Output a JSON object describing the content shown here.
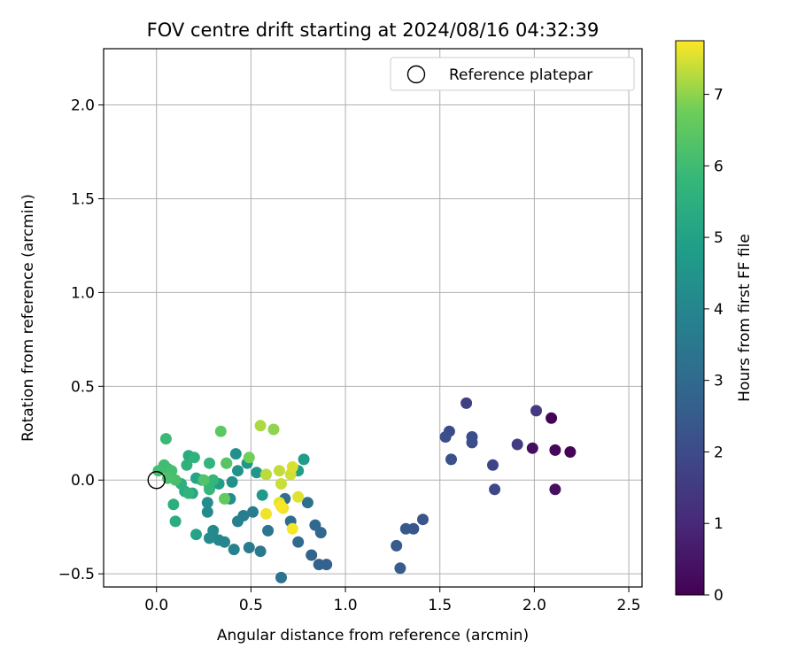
{
  "chart_data": {
    "type": "scatter",
    "title": "FOV centre drift starting at 2024/08/16 04:32:39",
    "xlabel": "Angular distance from reference (arcmin)",
    "ylabel": "Rotation from reference (arcmin)",
    "xlim": [
      -0.28,
      2.57
    ],
    "ylim": [
      -0.57,
      2.3
    ],
    "xticks": [
      0.0,
      0.5,
      1.0,
      1.5,
      2.0,
      2.5
    ],
    "xtick_labels": [
      "0.0",
      "0.5",
      "1.0",
      "1.5",
      "2.0",
      "2.5"
    ],
    "yticks": [
      -0.5,
      0.0,
      0.5,
      1.0,
      1.5,
      2.0
    ],
    "ytick_labels": [
      "−0.5",
      "0.0",
      "0.5",
      "1.0",
      "1.5",
      "2.0"
    ],
    "grid": true,
    "colormap": "viridis",
    "colorbar": {
      "label": "Hours from first FF file",
      "range": [
        0,
        7.75
      ],
      "ticks": [
        0,
        1,
        2,
        3,
        4,
        5,
        6,
        7
      ],
      "tick_labels": [
        "0",
        "1",
        "2",
        "3",
        "4",
        "5",
        "6",
        "7"
      ]
    },
    "legend": {
      "position": "top-right",
      "label": "Reference platepar"
    },
    "reference_point": {
      "x": 0.0,
      "y": 0.0
    },
    "points": [
      {
        "x": 2.09,
        "y": 0.33,
        "h": 0.05
      },
      {
        "x": 2.19,
        "y": 0.15,
        "h": 0.1
      },
      {
        "x": 2.11,
        "y": 0.16,
        "h": 0.15
      },
      {
        "x": 1.99,
        "y": 0.17,
        "h": 0.3
      },
      {
        "x": 2.11,
        "y": -0.05,
        "h": 0.4
      },
      {
        "x": 2.01,
        "y": 0.37,
        "h": 1.5
      },
      {
        "x": 1.91,
        "y": 0.19,
        "h": 1.55
      },
      {
        "x": 1.64,
        "y": 0.41,
        "h": 1.7
      },
      {
        "x": 1.78,
        "y": 0.08,
        "h": 1.8
      },
      {
        "x": 1.79,
        "y": -0.05,
        "h": 1.9
      },
      {
        "x": 1.55,
        "y": 0.26,
        "h": 2.0
      },
      {
        "x": 1.67,
        "y": 0.23,
        "h": 2.05
      },
      {
        "x": 1.67,
        "y": 0.2,
        "h": 2.1
      },
      {
        "x": 1.53,
        "y": 0.23,
        "h": 2.15
      },
      {
        "x": 1.56,
        "y": 0.11,
        "h": 2.2
      },
      {
        "x": 1.41,
        "y": -0.21,
        "h": 2.3
      },
      {
        "x": 1.36,
        "y": -0.26,
        "h": 2.35
      },
      {
        "x": 1.32,
        "y": -0.26,
        "h": 2.4
      },
      {
        "x": 1.27,
        "y": -0.35,
        "h": 2.5
      },
      {
        "x": 1.29,
        "y": -0.47,
        "h": 2.55
      },
      {
        "x": 0.9,
        "y": -0.45,
        "h": 2.7
      },
      {
        "x": 0.86,
        "y": -0.45,
        "h": 2.75
      },
      {
        "x": 0.82,
        "y": -0.4,
        "h": 2.8
      },
      {
        "x": 0.87,
        "y": -0.28,
        "h": 2.9
      },
      {
        "x": 0.84,
        "y": -0.24,
        "h": 2.95
      },
      {
        "x": 0.75,
        "y": -0.33,
        "h": 3.0
      },
      {
        "x": 0.71,
        "y": -0.22,
        "h": 3.1
      },
      {
        "x": 0.8,
        "y": -0.12,
        "h": 3.15
      },
      {
        "x": 0.68,
        "y": -0.1,
        "h": 3.2
      },
      {
        "x": 0.66,
        "y": -0.52,
        "h": 3.3
      },
      {
        "x": 0.59,
        "y": -0.27,
        "h": 3.4
      },
      {
        "x": 0.55,
        "y": -0.38,
        "h": 3.5
      },
      {
        "x": 0.49,
        "y": -0.36,
        "h": 3.6
      },
      {
        "x": 0.51,
        "y": -0.17,
        "h": 3.65
      },
      {
        "x": 0.46,
        "y": -0.19,
        "h": 3.7
      },
      {
        "x": 0.43,
        "y": -0.22,
        "h": 3.8
      },
      {
        "x": 0.41,
        "y": -0.37,
        "h": 3.9
      },
      {
        "x": 0.36,
        "y": -0.33,
        "h": 4.0
      },
      {
        "x": 0.33,
        "y": -0.32,
        "h": 4.05
      },
      {
        "x": 0.3,
        "y": -0.27,
        "h": 4.1
      },
      {
        "x": 0.28,
        "y": -0.31,
        "h": 4.15
      },
      {
        "x": 0.27,
        "y": -0.17,
        "h": 4.2
      },
      {
        "x": 0.27,
        "y": -0.12,
        "h": 4.25
      },
      {
        "x": 0.39,
        "y": -0.1,
        "h": 4.3
      },
      {
        "x": 0.4,
        "y": -0.01,
        "h": 4.35
      },
      {
        "x": 0.42,
        "y": 0.14,
        "h": 4.4
      },
      {
        "x": 0.43,
        "y": 0.05,
        "h": 4.45
      },
      {
        "x": 0.37,
        "y": 0.09,
        "h": 4.5
      },
      {
        "x": 0.48,
        "y": 0.09,
        "h": 4.55
      },
      {
        "x": 0.53,
        "y": 0.04,
        "h": 4.6
      },
      {
        "x": 0.56,
        "y": -0.08,
        "h": 4.7
      },
      {
        "x": 0.78,
        "y": 0.11,
        "h": 4.8
      },
      {
        "x": 0.75,
        "y": 0.05,
        "h": 4.85
      },
      {
        "x": 0.33,
        "y": -0.02,
        "h": 4.9
      },
      {
        "x": 0.28,
        "y": -0.03,
        "h": 5.0
      },
      {
        "x": 0.21,
        "y": -0.29,
        "h": 5.05
      },
      {
        "x": 0.21,
        "y": 0.01,
        "h": 5.1
      },
      {
        "x": 0.24,
        "y": 0.0,
        "h": 5.15
      },
      {
        "x": 0.19,
        "y": -0.07,
        "h": 5.2
      },
      {
        "x": 0.17,
        "y": 0.13,
        "h": 5.3
      },
      {
        "x": 0.15,
        "y": -0.06,
        "h": 5.35
      },
      {
        "x": 0.1,
        "y": -0.22,
        "h": 5.4
      },
      {
        "x": 0.09,
        "y": -0.13,
        "h": 5.45
      },
      {
        "x": 0.13,
        "y": -0.02,
        "h": 5.5
      },
      {
        "x": 0.16,
        "y": 0.08,
        "h": 5.55
      },
      {
        "x": 0.2,
        "y": 0.12,
        "h": 5.6
      },
      {
        "x": 0.17,
        "y": -0.07,
        "h": 5.65
      },
      {
        "x": 0.28,
        "y": 0.09,
        "h": 5.7
      },
      {
        "x": 0.3,
        "y": 0.0,
        "h": 5.75
      },
      {
        "x": 0.28,
        "y": -0.05,
        "h": 5.8
      },
      {
        "x": 0.05,
        "y": 0.22,
        "h": 5.9
      },
      {
        "x": 0.06,
        "y": 0.06,
        "h": 5.95
      },
      {
        "x": 0.04,
        "y": 0.08,
        "h": 6.0
      },
      {
        "x": 0.01,
        "y": 0.05,
        "h": 6.05
      },
      {
        "x": 0.08,
        "y": 0.05,
        "h": 6.1
      },
      {
        "x": 0.1,
        "y": 0.0,
        "h": 6.15
      },
      {
        "x": 0.06,
        "y": 0.01,
        "h": 6.2
      },
      {
        "x": 0.25,
        "y": 0.0,
        "h": 6.3
      },
      {
        "x": 0.37,
        "y": 0.09,
        "h": 6.4
      },
      {
        "x": 0.34,
        "y": 0.26,
        "h": 6.5
      },
      {
        "x": 0.36,
        "y": -0.1,
        "h": 6.6
      },
      {
        "x": 0.49,
        "y": 0.12,
        "h": 6.8
      },
      {
        "x": 0.62,
        "y": 0.27,
        "h": 7.0
      },
      {
        "x": 0.55,
        "y": 0.29,
        "h": 7.2
      },
      {
        "x": 0.58,
        "y": 0.03,
        "h": 7.3
      },
      {
        "x": 0.65,
        "y": 0.05,
        "h": 7.35
      },
      {
        "x": 0.66,
        "y": -0.02,
        "h": 7.4
      },
      {
        "x": 0.71,
        "y": 0.03,
        "h": 7.45
      },
      {
        "x": 0.72,
        "y": 0.07,
        "h": 7.5
      },
      {
        "x": 0.75,
        "y": -0.09,
        "h": 7.55
      },
      {
        "x": 0.65,
        "y": -0.12,
        "h": 7.6
      },
      {
        "x": 0.67,
        "y": -0.15,
        "h": 7.62
      },
      {
        "x": 0.58,
        "y": -0.18,
        "h": 7.65
      },
      {
        "x": 0.72,
        "y": -0.26,
        "h": 7.7
      },
      {
        "x": 0.66,
        "y": -0.14,
        "h": 7.72
      }
    ]
  }
}
